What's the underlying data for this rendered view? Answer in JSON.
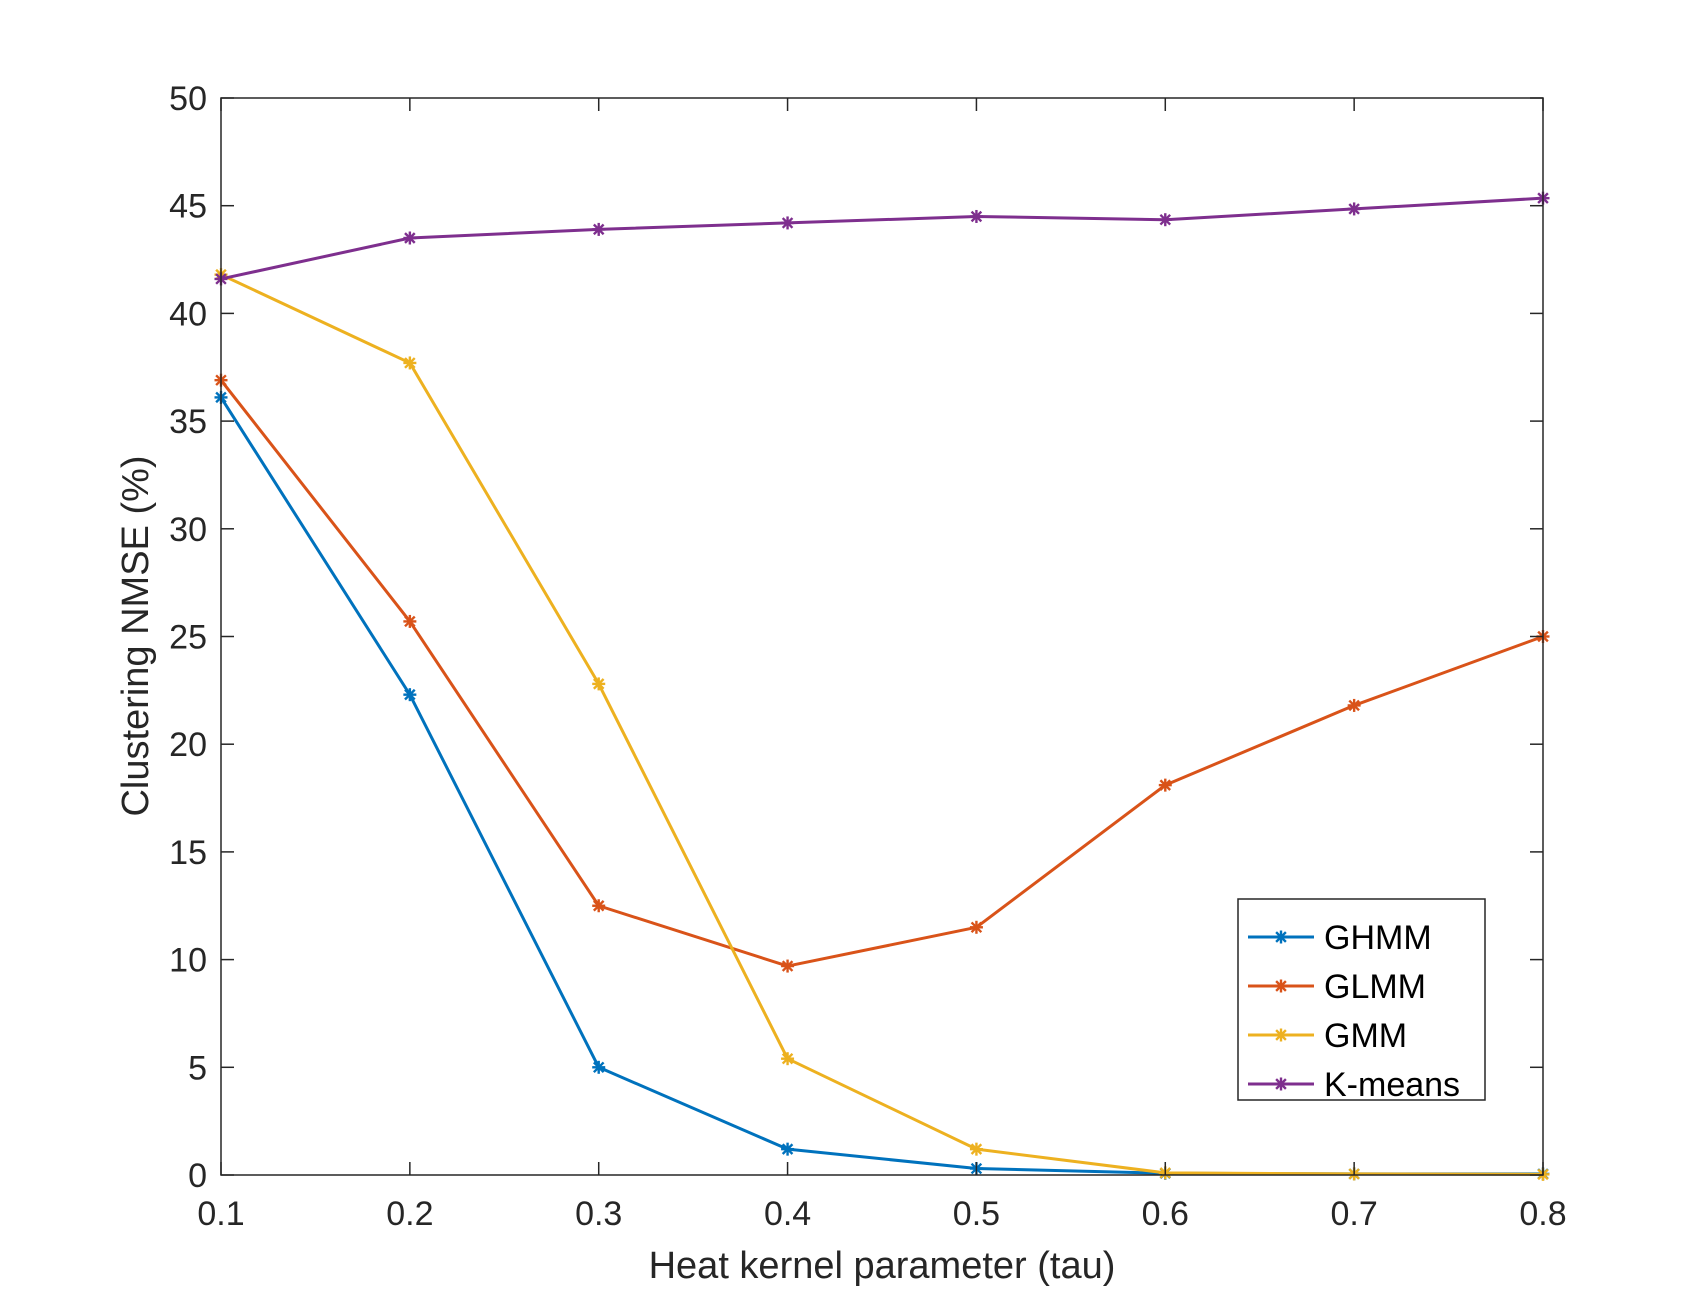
{
  "chart_data": {
    "type": "line",
    "title": "",
    "xlabel": "Heat kernel parameter (tau)",
    "ylabel": "Clustering NMSE (%)",
    "x": [
      0.1,
      0.2,
      0.3,
      0.4,
      0.5,
      0.6,
      0.7,
      0.8
    ],
    "xlim": [
      0.1,
      0.8
    ],
    "ylim": [
      0,
      50
    ],
    "xticks": [
      "0.1",
      "0.2",
      "0.3",
      "0.4",
      "0.5",
      "0.6",
      "0.7",
      "0.8"
    ],
    "yticks": [
      "0",
      "5",
      "10",
      "15",
      "20",
      "25",
      "30",
      "35",
      "40",
      "45",
      "50"
    ],
    "grid": false,
    "legend_position": "lower-right",
    "marker": "asterisk",
    "series": [
      {
        "name": "GHMM",
        "color": "#0072BD",
        "values": [
          36.1,
          22.3,
          5.0,
          1.2,
          0.3,
          0.08,
          0.05,
          0.05
        ]
      },
      {
        "name": "GLMM",
        "color": "#D95319",
        "values": [
          36.9,
          25.7,
          12.5,
          9.7,
          11.5,
          18.1,
          21.8,
          25.0
        ]
      },
      {
        "name": "GMM",
        "color": "#EDB120",
        "values": [
          41.8,
          37.7,
          22.8,
          5.4,
          1.2,
          0.1,
          0.05,
          0.03
        ]
      },
      {
        "name": "K-means",
        "color": "#7E2F8E",
        "values": [
          41.6,
          43.5,
          43.9,
          44.2,
          44.5,
          44.35,
          44.85,
          45.35
        ]
      }
    ]
  }
}
